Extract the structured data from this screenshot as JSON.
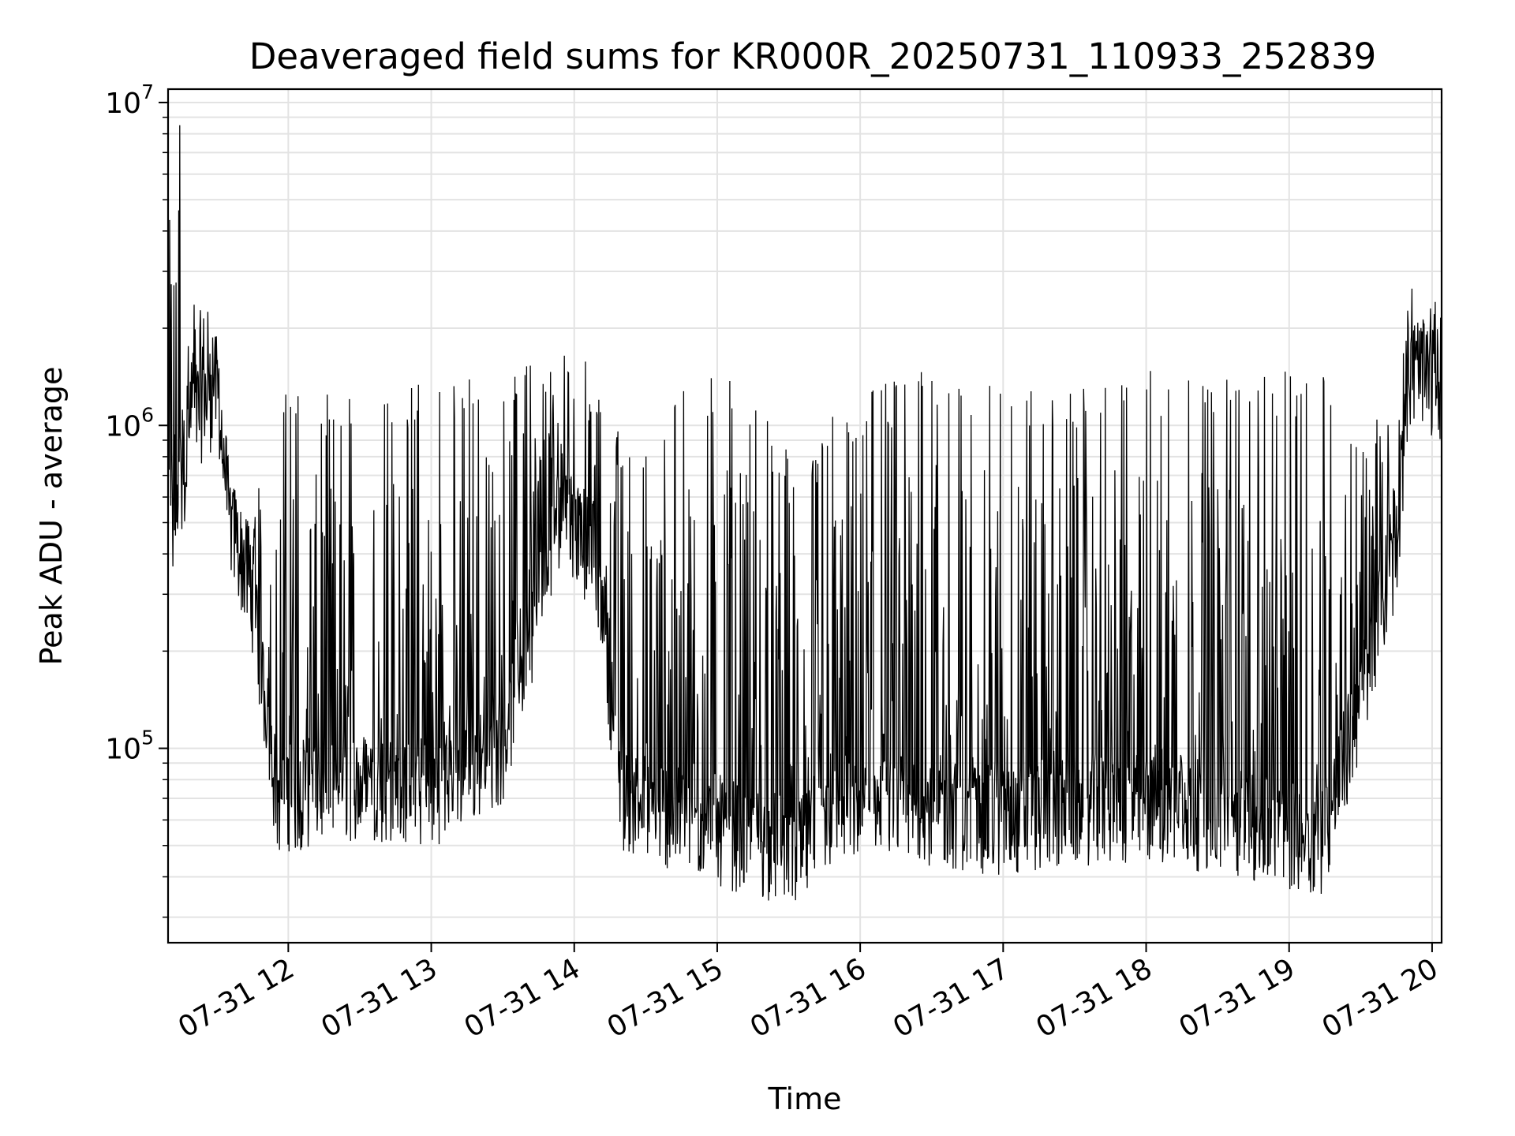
{
  "chart_data": {
    "type": "line",
    "title": "Deaveraged field sums for KR000R_20250731_110933_252839",
    "xlabel": "Time",
    "ylabel": "Peak ADU - average",
    "yscale": "log",
    "ylim": [
      25000,
      11000000
    ],
    "xlim": [
      "2025-07-31T11:09:33",
      "2025-07-31T20:04:00"
    ],
    "x_ticks": [
      "07-31 12",
      "07-31 13",
      "07-31 14",
      "07-31 15",
      "07-31 16",
      "07-31 17",
      "07-31 18",
      "07-31 19",
      "07-31 20"
    ],
    "y_ticks": [
      {
        "base": "10",
        "exp": "5",
        "value": 100000
      },
      {
        "base": "10",
        "exp": "6",
        "value": 1000000
      },
      {
        "base": "10",
        "exp": "7",
        "value": 10000000
      }
    ],
    "grid": true,
    "line_color": "#000000",
    "series": [
      {
        "summary": "Noisy high-cadence time series; piecewise envelope of peaks and baseline estimated from the plot",
        "envelope": [
          {
            "t": "2025-07-31T11:10",
            "base": 330000,
            "peak": 8500000
          },
          {
            "t": "2025-07-31T11:20",
            "base": 900000,
            "peak": 2800000
          },
          {
            "t": "2025-07-31T11:30",
            "base": 1100000,
            "peak": 2900000
          },
          {
            "t": "2025-07-31T11:35",
            "base": 450000,
            "peak": 700000
          },
          {
            "t": "2025-07-31T11:45",
            "base": 250000,
            "peak": 600000
          },
          {
            "t": "2025-07-31T11:55",
            "base": 60000,
            "peak": 1300000
          },
          {
            "t": "2025-07-31T12:30",
            "base": 65000,
            "peak": 1300000
          },
          {
            "t": "2025-07-31T13:00",
            "base": 62000,
            "peak": 1400000
          },
          {
            "t": "2025-07-31T13:30",
            "base": 85000,
            "peak": 1600000
          },
          {
            "t": "2025-07-31T13:55",
            "base": 500000,
            "peak": 1650000
          },
          {
            "t": "2025-07-31T14:10",
            "base": 300000,
            "peak": 1600000
          },
          {
            "t": "2025-07-31T14:20",
            "base": 60000,
            "peak": 900000
          },
          {
            "t": "2025-07-31T14:50",
            "base": 50000,
            "peak": 1400000
          },
          {
            "t": "2025-07-31T15:10",
            "base": 45000,
            "peak": 1500000
          },
          {
            "t": "2025-07-31T15:35",
            "base": 40000,
            "peak": 700000
          },
          {
            "t": "2025-07-31T15:50",
            "base": 55000,
            "peak": 1200000
          },
          {
            "t": "2025-07-31T16:30",
            "base": 55000,
            "peak": 1500000
          },
          {
            "t": "2025-07-31T17:00",
            "base": 50000,
            "peak": 1400000
          },
          {
            "t": "2025-07-31T17:30",
            "base": 55000,
            "peak": 1300000
          },
          {
            "t": "2025-07-31T18:00",
            "base": 55000,
            "peak": 1500000
          },
          {
            "t": "2025-07-31T18:30",
            "base": 52000,
            "peak": 1400000
          },
          {
            "t": "2025-07-31T19:00",
            "base": 45000,
            "peak": 1500000
          },
          {
            "t": "2025-07-31T19:15",
            "base": 45000,
            "peak": 1500000
          },
          {
            "t": "2025-07-31T19:30",
            "base": 120000,
            "peak": 1000000
          },
          {
            "t": "2025-07-31T19:45",
            "base": 350000,
            "peak": 1100000
          },
          {
            "t": "2025-07-31T19:50",
            "base": 1200000,
            "peak": 3000000
          },
          {
            "t": "2025-07-31T20:04",
            "base": 1150000,
            "peak": 3000000
          }
        ]
      }
    ]
  }
}
